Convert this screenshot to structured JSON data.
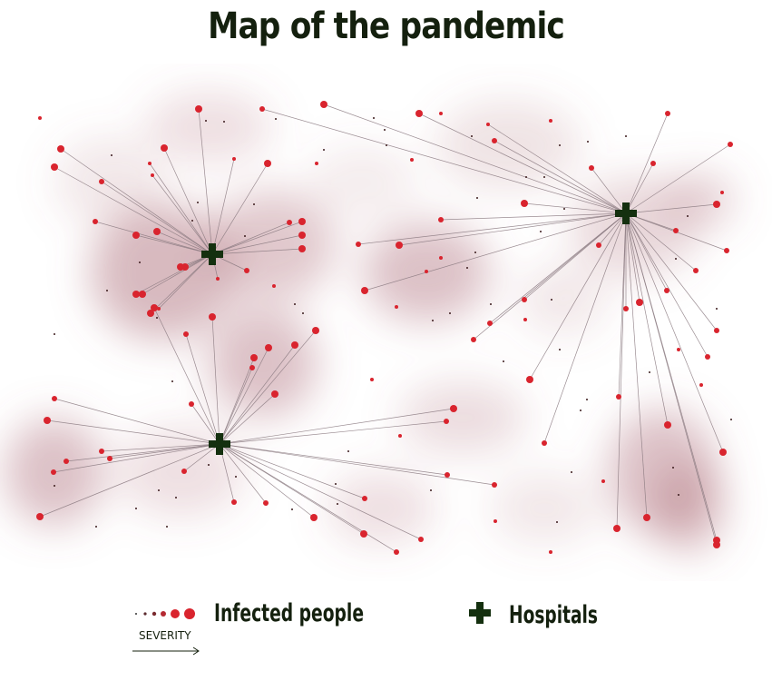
{
  "title": "Map of the pandemic",
  "colors": {
    "infected": "#d9242e",
    "hospital": "#14300f",
    "density": "#a86470",
    "line": "#8a7a80",
    "text": "#14200e"
  },
  "legend": {
    "severity_label": "SEVERITY",
    "infected_label": "Infected people",
    "hospitals_label": "Hospitals"
  }
}
